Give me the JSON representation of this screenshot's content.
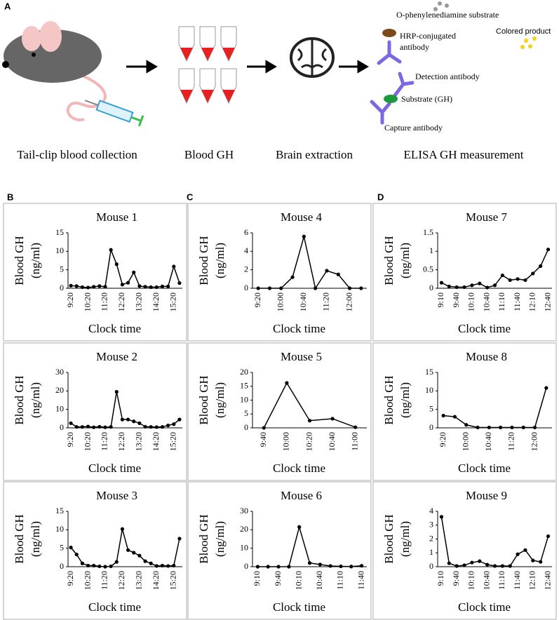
{
  "panel_labels": [
    "A",
    "B",
    "C",
    "D"
  ],
  "panel_a": {
    "steps": [
      "Tail-clip blood collection",
      "Blood GH",
      "Brain extraction",
      "ELISA GH measurement"
    ],
    "elisa_labels": [
      "O-phenylenediamine substrate",
      "Colored product",
      "HRP-conjugated",
      "antibody",
      "Detection antibody",
      "Substrate (GH)",
      "Capture antibody"
    ]
  },
  "chart_data": [
    {
      "type": "line",
      "title": "Mouse 1",
      "ylabel": "Blood GH",
      "yunit": "(ng/ml)",
      "xlabel": "Clock time",
      "color": "#000000",
      "categories": [
        "9:20",
        null,
        null,
        "10:20",
        null,
        null,
        "11:20",
        null,
        null,
        "12:20",
        null,
        null,
        "13:20",
        null,
        null,
        "14:20",
        null,
        null,
        "15:20",
        null
      ],
      "values": [
        0.7,
        0.6,
        0.3,
        0.2,
        0.4,
        0.6,
        0.4,
        10.4,
        6.5,
        1.0,
        1.5,
        4.3,
        0.6,
        0.4,
        0.3,
        0.3,
        0.5,
        0.5,
        5.9,
        1.4
      ],
      "ylim": [
        0,
        15
      ],
      "yticks": [
        0,
        5,
        10,
        15
      ]
    },
    {
      "type": "line",
      "title": "Mouse 2",
      "ylabel": "Blood GH",
      "yunit": "(ng/ml)",
      "xlabel": "Clock time",
      "color": "#000000",
      "categories": [
        "9:20",
        null,
        null,
        "10:20",
        null,
        null,
        "11:20",
        null,
        null,
        "12:20",
        null,
        null,
        "13:20",
        null,
        null,
        "14:20",
        null,
        null,
        "15:20",
        null
      ],
      "values": [
        2.5,
        0.5,
        0.5,
        0.7,
        0.3,
        0.6,
        0.3,
        0.5,
        19.5,
        4.5,
        4.5,
        3.5,
        2.5,
        0.6,
        0.5,
        0.4,
        0.5,
        1.3,
        2.0,
        4.5
      ],
      "ylim": [
        0,
        30
      ],
      "yticks": [
        0,
        10,
        20,
        30
      ]
    },
    {
      "type": "line",
      "title": "Mouse 3",
      "ylabel": "Blood GH",
      "yunit": "(ng/ml)",
      "xlabel": "Clock time",
      "color": "#000000",
      "categories": [
        "9:20",
        null,
        null,
        "10:20",
        null,
        null,
        "11:20",
        null,
        null,
        "12:20",
        null,
        null,
        "13:20",
        null,
        null,
        "14:20",
        null,
        null,
        "15:20",
        null
      ],
      "values": [
        5.2,
        3.3,
        0.9,
        0.3,
        0.3,
        0.1,
        0.0,
        0.1,
        1.3,
        10.2,
        4.5,
        3.8,
        3.0,
        1.5,
        0.9,
        0.2,
        0.3,
        0.2,
        0.3,
        7.6
      ],
      "ylim": [
        0,
        15
      ],
      "yticks": [
        0,
        5,
        10,
        15
      ]
    },
    {
      "type": "line",
      "title": "Mouse 4",
      "ylabel": "Blood GH",
      "yunit": "(ng/ml)",
      "xlabel": "Clock time",
      "color": "#000000",
      "categories": [
        "9:20",
        null,
        "10:00",
        null,
        "10:40",
        null,
        "11:20",
        null,
        "12:00",
        null
      ],
      "values": [
        0,
        0,
        0,
        1.2,
        5.6,
        0,
        1.9,
        1.5,
        0,
        0
      ],
      "ylim": [
        0,
        6
      ],
      "yticks": [
        0,
        2,
        4,
        6
      ]
    },
    {
      "type": "line",
      "title": "Mouse 5",
      "ylabel": "Blood GH",
      "yunit": "(ng/ml)",
      "xlabel": "Clock time",
      "color": "#000000",
      "categories": [
        "9:40",
        "10:00",
        "10:20",
        "10:40",
        "11:00"
      ],
      "values": [
        0,
        16.2,
        2.6,
        3.3,
        0.2
      ],
      "ylim": [
        0,
        20
      ],
      "yticks": [
        0,
        5,
        10,
        15,
        20
      ]
    },
    {
      "type": "line",
      "title": "Mouse 6",
      "ylabel": "Blood GH",
      "yunit": "(ng/ml)",
      "xlabel": "Clock time",
      "color": "#000000",
      "categories": [
        "9:10",
        null,
        "9:40",
        null,
        "10:10",
        null,
        "10:40",
        null,
        "11:10",
        null,
        "11:40"
      ],
      "values": [
        0,
        0,
        0,
        0,
        21.5,
        2.0,
        1.2,
        0.4,
        0.2,
        0.1,
        0.5
      ],
      "ylim": [
        0,
        30
      ],
      "yticks": [
        0,
        10,
        20,
        30
      ]
    },
    {
      "type": "line",
      "title": "Mouse 7",
      "ylabel": "Blood GH",
      "yunit": "(ng/ml)",
      "xlabel": "Clock time",
      "color": "#000000",
      "categories": [
        "9:10",
        null,
        "9:40",
        null,
        "10:10",
        null,
        "10:40",
        null,
        "11:10",
        null,
        "11:40",
        null,
        "12:10",
        null,
        "12:40"
      ],
      "values": [
        0.15,
        0.05,
        0.03,
        0.03,
        0.08,
        0.13,
        0.02,
        0.08,
        0.35,
        0.22,
        0.25,
        0.22,
        0.4,
        0.6,
        1.05
      ],
      "ylim": [
        0,
        1.5
      ],
      "yticks": [
        0,
        0.5,
        1,
        1.5
      ]
    },
    {
      "type": "line",
      "title": "Mouse 8",
      "ylabel": "Blood GH",
      "yunit": "(ng/ml)",
      "xlabel": "Clock time",
      "color": "#000000",
      "categories": [
        "9:20",
        null,
        "10:00",
        null,
        "10:40",
        null,
        "11:20",
        null,
        "12:00",
        null
      ],
      "values": [
        3.3,
        3.0,
        0.8,
        0.1,
        0.1,
        0.1,
        0.1,
        0.1,
        0.1,
        10.8
      ],
      "ylim": [
        0,
        15
      ],
      "yticks": [
        0,
        5,
        10,
        15
      ]
    },
    {
      "type": "line",
      "title": "Mouse 9",
      "ylabel": "Blood GH",
      "yunit": "(ng/ml)",
      "xlabel": "Clock time",
      "color": "#000000",
      "categories": [
        "9:10",
        null,
        "9:40",
        null,
        "10:10",
        null,
        "10:40",
        null,
        "11:10",
        null,
        "11:40",
        null,
        "12:10",
        null,
        "12:40"
      ],
      "values": [
        3.6,
        0.25,
        0.05,
        0.1,
        0.3,
        0.4,
        0.15,
        0.05,
        0.05,
        0.05,
        0.9,
        1.2,
        0.45,
        0.35,
        2.2
      ],
      "ylim": [
        0,
        4
      ],
      "yticks": [
        0,
        1,
        2,
        3,
        4
      ]
    }
  ]
}
